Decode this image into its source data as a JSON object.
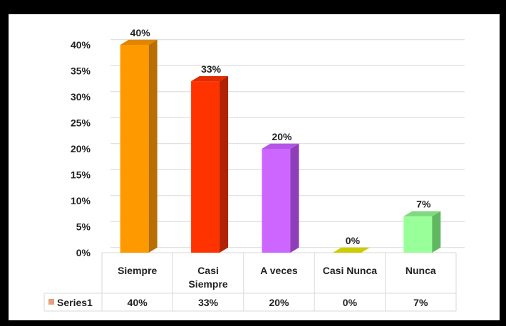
{
  "chart_data": {
    "type": "bar",
    "style": "3d-column",
    "categories": [
      "Siempre",
      "Casi Siempre",
      "A veces",
      "Casi Nunca",
      "Nunca"
    ],
    "category_lines": [
      [
        "Siempre"
      ],
      [
        "Casi",
        "Siempre"
      ],
      [
        "A veces"
      ],
      [
        "Casi Nunca"
      ],
      [
        "Nunca"
      ]
    ],
    "series": [
      {
        "name": "Series1",
        "values": [
          40,
          33,
          20,
          0,
          7
        ]
      }
    ],
    "data_labels": [
      "40%",
      "33%",
      "20%",
      "0%",
      "7%"
    ],
    "y_ticks": [
      "0%",
      "5%",
      "10%",
      "15%",
      "20%",
      "25%",
      "30%",
      "35%",
      "40%"
    ],
    "ylim": [
      0,
      40
    ],
    "ystep": 5,
    "grid": true,
    "data_table": true,
    "title": "",
    "xlabel": "",
    "ylabel": "",
    "colors": {
      "bars": [
        "#FF9900",
        "#FF3300",
        "#CC66FF",
        "#CCCC00",
        "#99FF99"
      ],
      "bar_sides": [
        "#B86E00",
        "#B02200",
        "#8E3FB8",
        "#8A8A00",
        "#5FB85F"
      ],
      "bar_tops": [
        "#E08600",
        "#E02C00",
        "#B455E6",
        "#B3B300",
        "#80D980"
      ],
      "legend_key": "#E7A07A",
      "grid": "#D9D9D9",
      "frame": "#000000"
    }
  }
}
